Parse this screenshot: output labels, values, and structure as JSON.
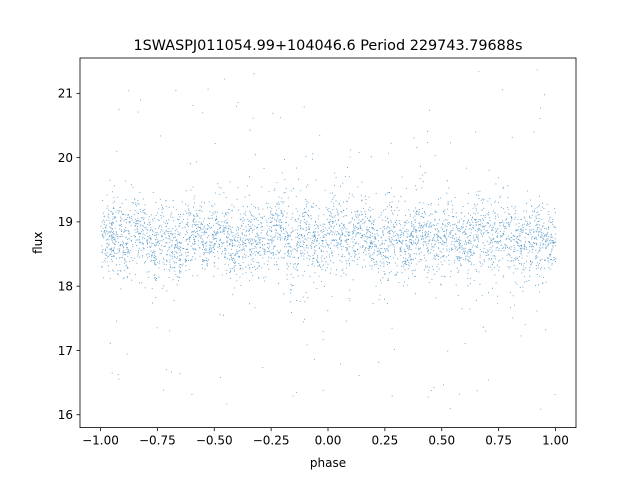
{
  "chart_data": {
    "type": "scatter",
    "title": "1SWASPJ011054.99+104046.6 Period 229743.79688s",
    "xlabel": "phase",
    "ylabel": "flux",
    "xlim": [
      -1.09,
      1.09
    ],
    "ylim": [
      15.8,
      21.55
    ],
    "x_ticks": [
      -1.0,
      -0.75,
      -0.5,
      -0.25,
      0.0,
      0.25,
      0.5,
      0.75,
      1.0
    ],
    "x_tick_labels": [
      "−1.00",
      "−0.75",
      "−0.50",
      "−0.25",
      "0.00",
      "0.25",
      "0.50",
      "0.75",
      "1.00"
    ],
    "y_ticks": [
      16,
      17,
      18,
      19,
      20,
      21
    ],
    "y_tick_labels": [
      "16",
      "17",
      "18",
      "19",
      "20",
      "21"
    ],
    "grid": false,
    "point_color": "#1f77b4",
    "x_range": [
      -1.0,
      1.0
    ],
    "y_range": [
      16.05,
      21.4
    ],
    "median_flux": 18.75,
    "core_band": [
      18.0,
      19.4
    ],
    "point_count_approx": 22000
  }
}
